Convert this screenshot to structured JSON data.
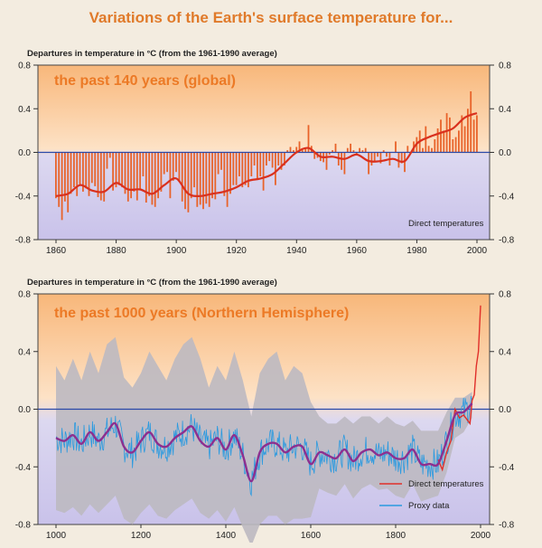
{
  "title": "Variations of the Earth's surface temperature for...",
  "chart_data": [
    {
      "type": "line",
      "title": "the past 140 years (global)",
      "ylabel": "Departures in temperature in °C (from the 1961-1990 average)",
      "xlim": [
        1860,
        2000
      ],
      "ylim": [
        -0.8,
        0.8
      ],
      "x_ticks": [
        "1860",
        "1880",
        "1900",
        "1920",
        "1940",
        "1960",
        "1980",
        "2000"
      ],
      "y_ticks": [
        "0.8",
        "0.4",
        "0.0",
        "-0.4",
        "-0.8"
      ],
      "legend": [
        "Direct temperatures"
      ],
      "colors": {
        "bars": "#e8632a",
        "smooth": "#d9301e",
        "zero_line": "#2a49a8"
      },
      "annual_x": [
        1860,
        1861,
        1862,
        1863,
        1864,
        1865,
        1866,
        1867,
        1868,
        1869,
        1870,
        1871,
        1872,
        1873,
        1874,
        1875,
        1876,
        1877,
        1878,
        1879,
        1880,
        1881,
        1882,
        1883,
        1884,
        1885,
        1886,
        1887,
        1888,
        1889,
        1890,
        1891,
        1892,
        1893,
        1894,
        1895,
        1896,
        1897,
        1898,
        1899,
        1900,
        1901,
        1902,
        1903,
        1904,
        1905,
        1906,
        1907,
        1908,
        1909,
        1910,
        1911,
        1912,
        1913,
        1914,
        1915,
        1916,
        1917,
        1918,
        1919,
        1920,
        1921,
        1922,
        1923,
        1924,
        1925,
        1926,
        1927,
        1928,
        1929,
        1930,
        1931,
        1932,
        1933,
        1934,
        1935,
        1936,
        1937,
        1938,
        1939,
        1940,
        1941,
        1942,
        1943,
        1944,
        1945,
        1946,
        1947,
        1948,
        1949,
        1950,
        1951,
        1952,
        1953,
        1954,
        1955,
        1956,
        1957,
        1958,
        1959,
        1960,
        1961,
        1962,
        1963,
        1964,
        1965,
        1966,
        1967,
        1968,
        1969,
        1970,
        1971,
        1972,
        1973,
        1974,
        1975,
        1976,
        1977,
        1978,
        1979,
        1980,
        1981,
        1982,
        1983,
        1984,
        1985,
        1986,
        1987,
        1988,
        1989,
        1990,
        1991,
        1992,
        1993,
        1994,
        1995,
        1996,
        1997,
        1998,
        1999,
        2000
      ],
      "annual_y": [
        -0.42,
        -0.5,
        -0.62,
        -0.45,
        -0.55,
        -0.38,
        -0.32,
        -0.4,
        -0.3,
        -0.36,
        -0.33,
        -0.4,
        -0.28,
        -0.31,
        -0.41,
        -0.44,
        -0.45,
        -0.15,
        -0.05,
        -0.35,
        -0.32,
        -0.3,
        -0.32,
        -0.38,
        -0.45,
        -0.42,
        -0.36,
        -0.44,
        -0.34,
        -0.22,
        -0.46,
        -0.4,
        -0.48,
        -0.5,
        -0.42,
        -0.36,
        -0.2,
        -0.18,
        -0.42,
        -0.26,
        -0.18,
        -0.26,
        -0.45,
        -0.52,
        -0.55,
        -0.42,
        -0.32,
        -0.5,
        -0.48,
        -0.52,
        -0.47,
        -0.5,
        -0.42,
        -0.43,
        -0.2,
        -0.16,
        -0.4,
        -0.5,
        -0.38,
        -0.3,
        -0.3,
        -0.22,
        -0.32,
        -0.3,
        -0.32,
        -0.22,
        -0.12,
        -0.24,
        -0.22,
        -0.35,
        -0.12,
        -0.08,
        -0.14,
        -0.3,
        -0.12,
        -0.16,
        -0.12,
        0.02,
        0.05,
        0.02,
        0.05,
        0.1,
        0.02,
        0.04,
        0.25,
        0.06,
        -0.06,
        -0.05,
        -0.08,
        -0.09,
        -0.16,
        -0.02,
        0.02,
        0.08,
        -0.12,
        -0.16,
        -0.2,
        0.04,
        0.08,
        0.02,
        -0.02,
        0.04,
        0.02,
        0.04,
        -0.2,
        -0.12,
        -0.08,
        -0.04,
        -0.1,
        0.02,
        -0.04,
        -0.12,
        0.0,
        0.1,
        -0.14,
        -0.1,
        -0.18,
        0.06,
        0.0,
        0.1,
        0.14,
        0.2,
        0.04,
        0.24,
        0.06,
        0.04,
        0.12,
        0.22,
        0.3,
        0.2,
        0.36,
        0.32,
        0.12,
        0.14,
        0.2,
        0.34,
        0.24,
        0.4,
        0.56,
        0.3,
        0.34
      ],
      "smooth_x": [
        1860,
        1864,
        1868,
        1872,
        1876,
        1880,
        1884,
        1888,
        1892,
        1896,
        1900,
        1904,
        1908,
        1912,
        1916,
        1920,
        1924,
        1928,
        1932,
        1936,
        1940,
        1944,
        1948,
        1952,
        1956,
        1960,
        1964,
        1968,
        1972,
        1976,
        1980,
        1984,
        1988,
        1992,
        1996,
        2000
      ],
      "smooth_y": [
        -0.4,
        -0.38,
        -0.3,
        -0.35,
        -0.36,
        -0.28,
        -0.34,
        -0.34,
        -0.38,
        -0.3,
        -0.24,
        -0.38,
        -0.4,
        -0.38,
        -0.36,
        -0.32,
        -0.26,
        -0.24,
        -0.2,
        -0.1,
        0.0,
        0.04,
        -0.04,
        -0.04,
        -0.06,
        -0.02,
        -0.08,
        -0.08,
        -0.06,
        -0.08,
        0.08,
        0.14,
        0.18,
        0.22,
        0.32,
        0.36
      ]
    },
    {
      "type": "line",
      "title": "the past 1000 years (Northern Hemisphere)",
      "ylabel": "Departures in temperature in °C (from the 1961-1990 average)",
      "xlim": [
        1000,
        2000
      ],
      "ylim": [
        -0.8,
        0.8
      ],
      "x_ticks": [
        "1000",
        "1200",
        "1400",
        "1600",
        "1800",
        "2000"
      ],
      "y_ticks": [
        "0.8",
        "0.4",
        "0.0",
        "-0.4",
        "-0.8"
      ],
      "legend": [
        "Direct temperatures",
        "Proxy data"
      ],
      "colors": {
        "direct": "#e02f2a",
        "proxy": "#2a9ae0",
        "smooth": "#8d2f8f",
        "uncertainty": "#bdb9c1",
        "zero_line": "#2a49a8"
      },
      "proxy_smooth_x": [
        1000,
        1020,
        1040,
        1060,
        1080,
        1100,
        1120,
        1140,
        1160,
        1180,
        1200,
        1220,
        1240,
        1260,
        1280,
        1300,
        1320,
        1340,
        1360,
        1380,
        1400,
        1420,
        1440,
        1460,
        1480,
        1500,
        1520,
        1540,
        1560,
        1580,
        1600,
        1620,
        1640,
        1660,
        1680,
        1700,
        1720,
        1740,
        1760,
        1780,
        1800,
        1820,
        1840,
        1860,
        1880,
        1900,
        1920,
        1940,
        1960,
        1980
      ],
      "proxy_smooth_y": [
        -0.2,
        -0.22,
        -0.18,
        -0.24,
        -0.16,
        -0.22,
        -0.16,
        -0.1,
        -0.26,
        -0.3,
        -0.22,
        -0.16,
        -0.24,
        -0.26,
        -0.2,
        -0.16,
        -0.12,
        -0.22,
        -0.26,
        -0.2,
        -0.28,
        -0.18,
        -0.32,
        -0.5,
        -0.3,
        -0.24,
        -0.24,
        -0.3,
        -0.26,
        -0.26,
        -0.38,
        -0.3,
        -0.32,
        -0.34,
        -0.28,
        -0.36,
        -0.3,
        -0.28,
        -0.32,
        -0.3,
        -0.34,
        -0.34,
        -0.28,
        -0.38,
        -0.38,
        -0.38,
        -0.22,
        -0.04,
        -0.02,
        0.04
      ],
      "uncertainty_upper": [
        0.3,
        0.2,
        0.35,
        0.2,
        0.4,
        0.25,
        0.45,
        0.5,
        0.22,
        0.15,
        0.25,
        0.4,
        0.3,
        0.2,
        0.35,
        0.45,
        0.5,
        0.35,
        0.15,
        0.3,
        0.2,
        0.4,
        0.2,
        -0.05,
        0.25,
        0.35,
        0.4,
        0.2,
        0.3,
        0.25,
        0.05,
        -0.05,
        -0.1,
        -0.1,
        -0.05,
        -0.1,
        -0.05,
        -0.05,
        -0.1,
        -0.05,
        -0.1,
        -0.12,
        -0.08,
        -0.15,
        -0.15,
        -0.15,
        -0.02,
        0.08,
        0.08,
        0.12
      ],
      "uncertainty_lower": [
        -0.7,
        -0.72,
        -0.68,
        -0.74,
        -0.66,
        -0.72,
        -0.66,
        -0.6,
        -0.76,
        -0.8,
        -0.72,
        -0.66,
        -0.74,
        -0.76,
        -0.7,
        -0.66,
        -0.62,
        -0.72,
        -0.76,
        -0.7,
        -0.78,
        -0.68,
        -0.82,
        -0.95,
        -0.8,
        -0.74,
        -0.74,
        -0.8,
        -0.76,
        -0.76,
        -0.75,
        -0.55,
        -0.58,
        -0.6,
        -0.52,
        -0.62,
        -0.55,
        -0.52,
        -0.56,
        -0.55,
        -0.6,
        -0.62,
        -0.52,
        -0.64,
        -0.62,
        -0.6,
        -0.44,
        -0.2,
        -0.16,
        -0.06
      ],
      "direct_x": [
        1900,
        1910,
        1920,
        1930,
        1940,
        1950,
        1960,
        1970,
        1975,
        1980,
        1985,
        1990,
        1995,
        1998,
        2000
      ],
      "direct_y": [
        -0.35,
        -0.42,
        -0.3,
        -0.22,
        0.0,
        -0.06,
        -0.04,
        -0.08,
        -0.1,
        0.06,
        0.1,
        0.3,
        0.4,
        0.6,
        0.72
      ]
    }
  ]
}
